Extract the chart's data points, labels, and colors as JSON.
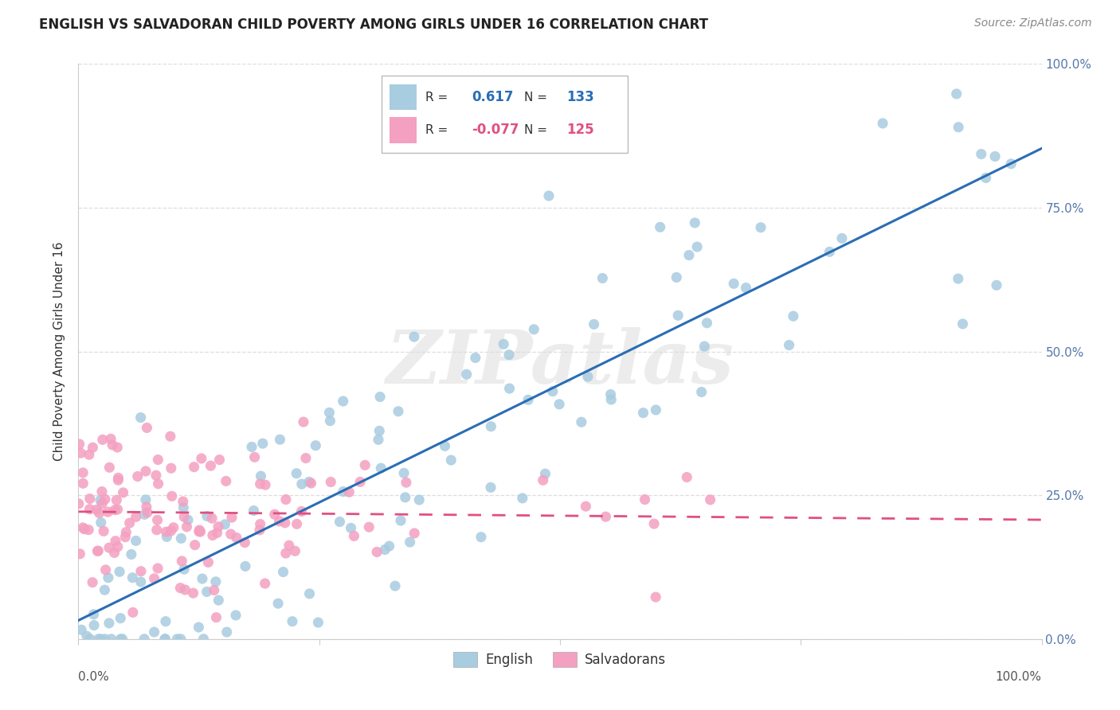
{
  "title": "ENGLISH VS SALVADORAN CHILD POVERTY AMONG GIRLS UNDER 16 CORRELATION CHART",
  "source": "Source: ZipAtlas.com",
  "ylabel": "Child Poverty Among Girls Under 16",
  "english_color": "#a8cce0",
  "salvadoran_color": "#f4a0c0",
  "english_line_color": "#2a6db5",
  "salvadoran_line_color": "#e05080",
  "english_R": 0.617,
  "english_N": 133,
  "salvadoran_R": -0.077,
  "salvadoran_N": 125,
  "watermark_text": "ZIPatlas",
  "background_color": "#ffffff",
  "grid_color": "#dddddd",
  "tick_color": "#5577aa",
  "ytick_labels": [
    "0.0%",
    "25.0%",
    "50.0%",
    "75.0%",
    "100.0%"
  ],
  "ytick_values": [
    0.0,
    0.25,
    0.5,
    0.75,
    1.0
  ],
  "title_fontsize": 12,
  "source_fontsize": 10,
  "axis_label_fontsize": 11,
  "tick_fontsize": 11,
  "legend_fontsize": 11
}
